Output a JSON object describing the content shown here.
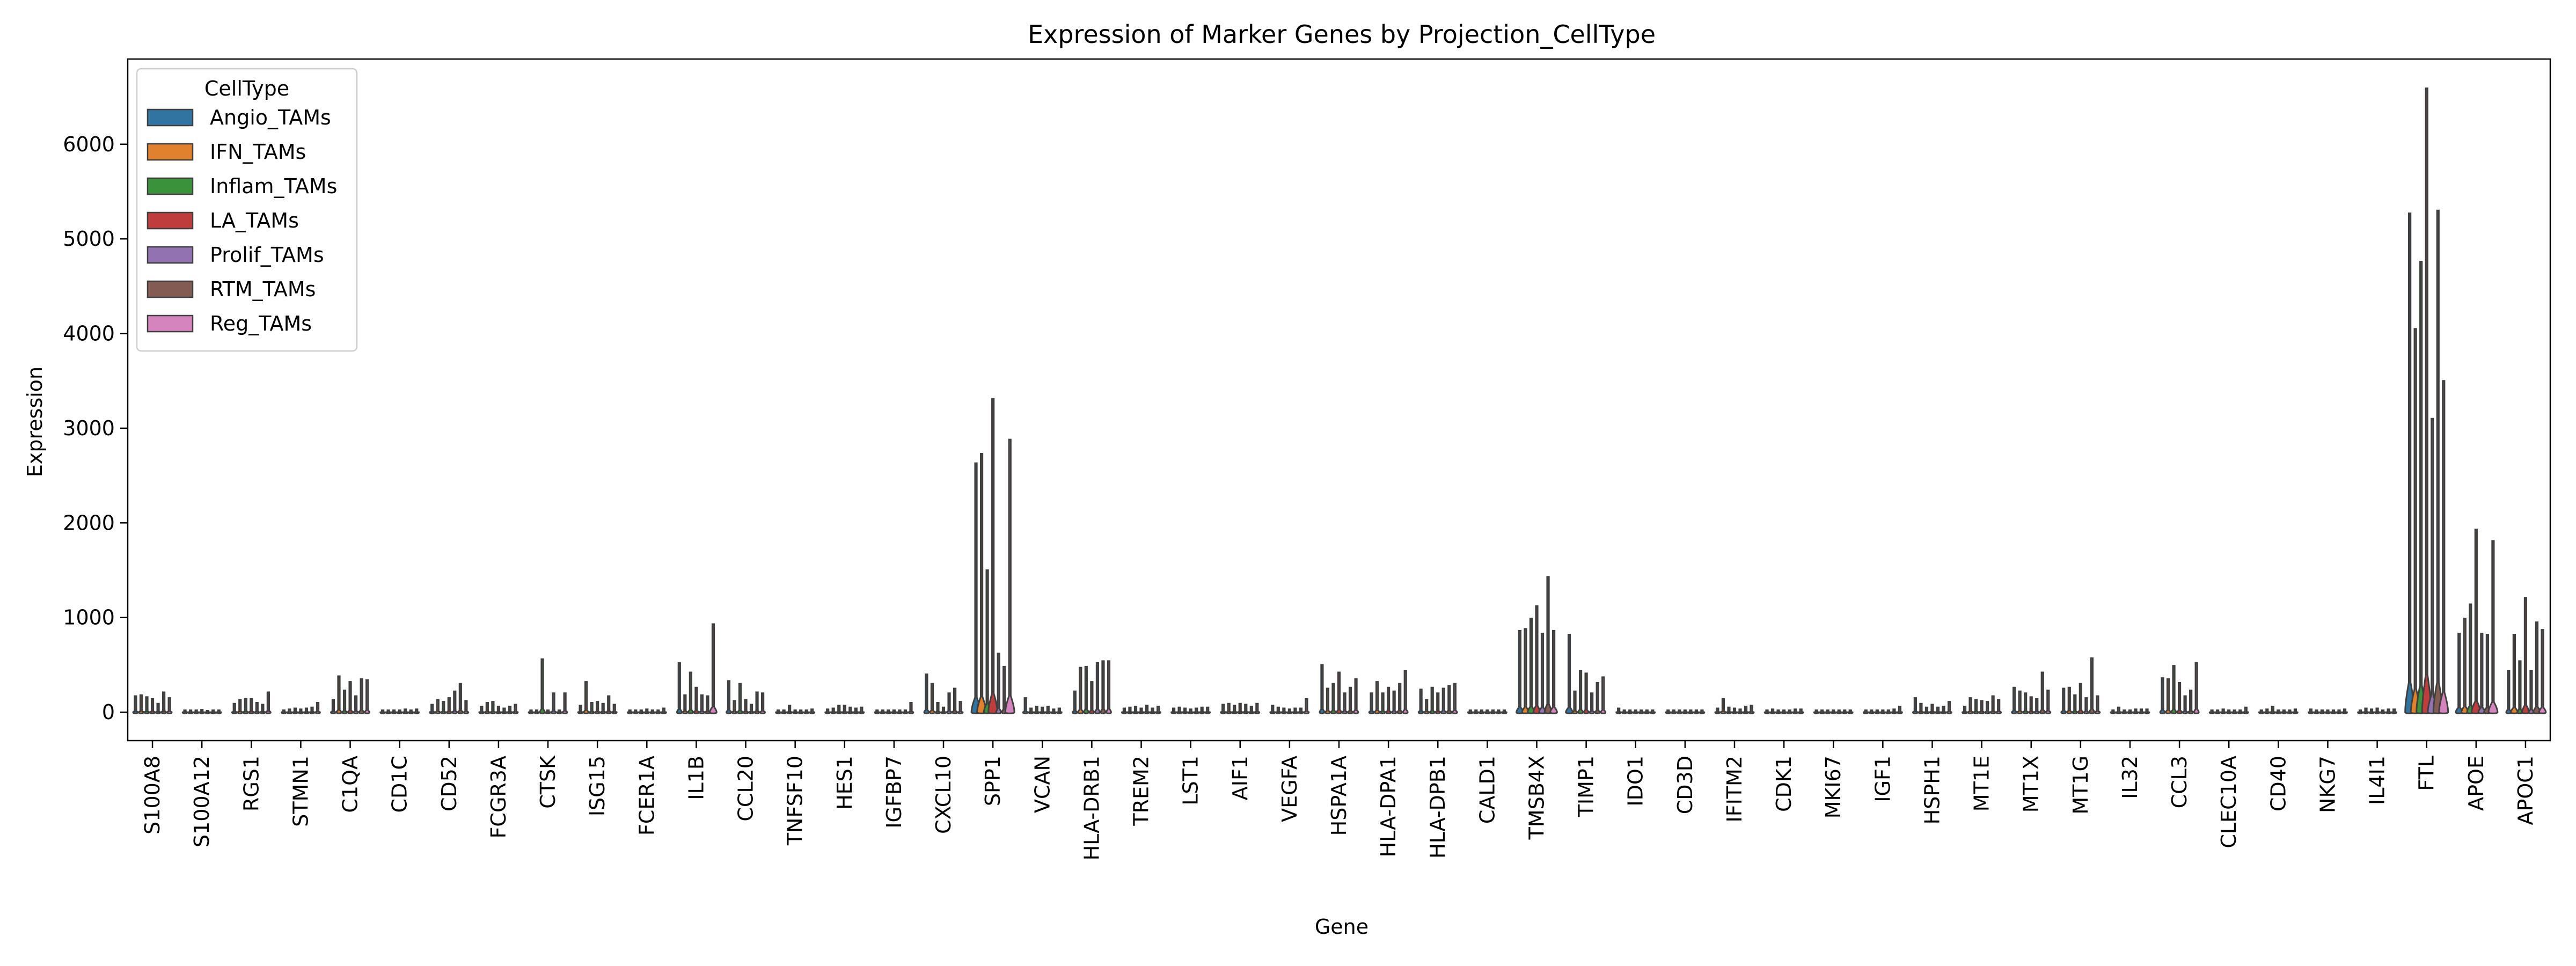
{
  "chart_data": {
    "type": "violin",
    "title": "Expression of Marker Genes by Projection_CellType",
    "xlabel": "Gene",
    "ylabel": "Expression",
    "ylim": [
      -300,
      6900
    ],
    "yticks": [
      0,
      1000,
      2000,
      3000,
      4000,
      5000,
      6000
    ],
    "legend": {
      "title": "CellType",
      "placement": "top-left"
    },
    "series": [
      {
        "name": "Angio_TAMs",
        "color": "#3274a1"
      },
      {
        "name": "IFN_TAMs",
        "color": "#e1812c"
      },
      {
        "name": "Inflam_TAMs",
        "color": "#3a923a"
      },
      {
        "name": "LA_TAMs",
        "color": "#c03d3e"
      },
      {
        "name": "Prolif_TAMs",
        "color": "#9372b2"
      },
      {
        "name": "RTM_TAMs",
        "color": "#845b53"
      },
      {
        "name": "Reg_TAMs",
        "color": "#d684bd"
      }
    ],
    "categories": [
      "S100A8",
      "S100A12",
      "RGS1",
      "STMN1",
      "C1QA",
      "CD1C",
      "CD52",
      "FCGR3A",
      "CTSK",
      "ISG15",
      "FCER1A",
      "IL1B",
      "CCL20",
      "TNFSF10",
      "HES1",
      "IGFBP7",
      "CXCL10",
      "SPP1",
      "VCAN",
      "HLA-DRB1",
      "TREM2",
      "LST1",
      "AIF1",
      "VEGFA",
      "HSPA1A",
      "HLA-DPA1",
      "HLA-DPB1",
      "CALD1",
      "TMSB4X",
      "TIMP1",
      "IDO1",
      "CD3D",
      "IFITM2",
      "CDK1",
      "MKI67",
      "IGF1",
      "HSPH1",
      "MT1E",
      "MT1X",
      "MT1G",
      "IL32",
      "CCL3",
      "CLEC10A",
      "CD40",
      "NKG7",
      "IL4I1",
      "FTL",
      "APOE",
      "APOC1"
    ],
    "max_values": [
      [
        170,
        180,
        160,
        140,
        90,
        210,
        150
      ],
      [
        20,
        20,
        20,
        25,
        15,
        20,
        20
      ],
      [
        90,
        130,
        140,
        140,
        100,
        80,
        210
      ],
      [
        20,
        30,
        40,
        30,
        40,
        50,
        100
      ],
      [
        130,
        380,
        230,
        320,
        170,
        350,
        340
      ],
      [
        20,
        20,
        20,
        20,
        30,
        20,
        30
      ],
      [
        80,
        130,
        110,
        150,
        220,
        300,
        120
      ],
      [
        60,
        100,
        110,
        60,
        40,
        60,
        80
      ],
      [
        20,
        20,
        560,
        20,
        200,
        20,
        200
      ],
      [
        70,
        320,
        100,
        110,
        90,
        170,
        80
      ],
      [
        20,
        20,
        20,
        30,
        20,
        20,
        40
      ],
      [
        520,
        180,
        420,
        260,
        180,
        170,
        930
      ],
      [
        330,
        120,
        300,
        130,
        80,
        210,
        200
      ],
      [
        20,
        20,
        70,
        20,
        20,
        20,
        30
      ],
      [
        30,
        40,
        70,
        70,
        50,
        40,
        50
      ],
      [
        20,
        20,
        20,
        20,
        20,
        20,
        100
      ],
      [
        400,
        300,
        100,
        50,
        200,
        250,
        110
      ],
      [
        2630,
        2730,
        1500,
        3310,
        620,
        480,
        2880
      ],
      [
        150,
        40,
        60,
        50,
        60,
        30,
        40
      ],
      [
        220,
        470,
        480,
        320,
        520,
        540,
        540
      ],
      [
        40,
        50,
        60,
        40,
        70,
        40,
        60
      ],
      [
        40,
        50,
        40,
        30,
        40,
        50,
        50
      ],
      [
        80,
        90,
        70,
        90,
        80,
        60,
        90
      ],
      [
        70,
        50,
        40,
        30,
        40,
        40,
        140
      ],
      [
        500,
        250,
        300,
        420,
        200,
        260,
        350
      ],
      [
        200,
        320,
        200,
        260,
        220,
        300,
        440
      ],
      [
        240,
        130,
        260,
        200,
        250,
        280,
        300
      ],
      [
        20,
        20,
        20,
        20,
        20,
        20,
        20
      ],
      [
        860,
        880,
        990,
        1120,
        830,
        1430,
        860
      ],
      [
        820,
        220,
        440,
        410,
        200,
        310,
        370
      ],
      [
        40,
        20,
        20,
        20,
        20,
        20,
        20
      ],
      [
        20,
        20,
        20,
        20,
        20,
        20,
        20
      ],
      [
        40,
        140,
        50,
        40,
        30,
        60,
        70
      ],
      [
        20,
        30,
        20,
        20,
        20,
        30,
        30
      ],
      [
        20,
        20,
        20,
        20,
        20,
        20,
        20
      ],
      [
        20,
        20,
        20,
        20,
        20,
        30,
        60
      ],
      [
        150,
        90,
        50,
        80,
        50,
        60,
        110
      ],
      [
        60,
        150,
        130,
        120,
        110,
        170,
        130
      ],
      [
        260,
        220,
        200,
        160,
        140,
        420,
        230
      ],
      [
        250,
        260,
        180,
        300,
        150,
        570,
        170
      ],
      [
        20,
        50,
        20,
        20,
        30,
        30,
        30
      ],
      [
        360,
        350,
        490,
        310,
        170,
        230,
        520
      ],
      [
        20,
        20,
        30,
        20,
        20,
        20,
        50
      ],
      [
        20,
        30,
        60,
        20,
        20,
        20,
        30
      ],
      [
        30,
        20,
        20,
        20,
        20,
        20,
        30
      ],
      [
        20,
        40,
        30,
        40,
        20,
        30,
        30
      ],
      [
        5270,
        4050,
        4760,
        6590,
        3100,
        5300,
        3500
      ],
      [
        830,
        990,
        1140,
        1930,
        830,
        820,
        1810
      ],
      [
        440,
        820,
        540,
        1210,
        440,
        950,
        870
      ]
    ]
  }
}
